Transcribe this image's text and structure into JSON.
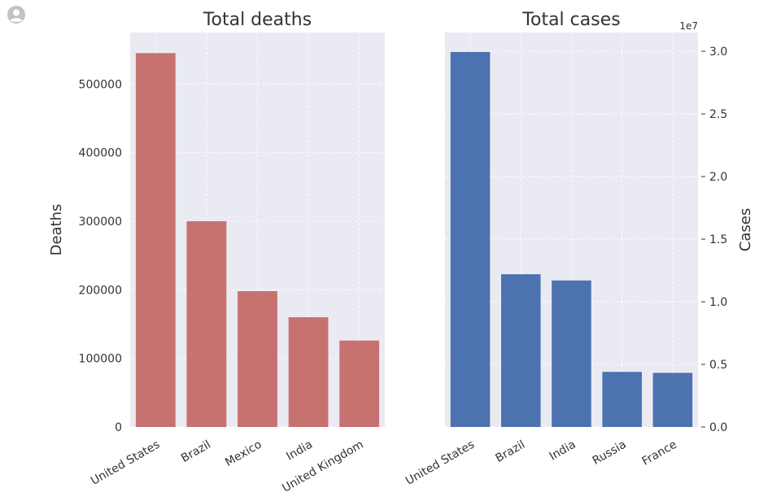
{
  "chart_data": [
    {
      "type": "bar",
      "title": "Total deaths",
      "ylabel": "Deaths",
      "categories": [
        "United States",
        "Brazil",
        "Mexico",
        "India",
        "United Kingdom"
      ],
      "values": [
        545000,
        300000,
        198000,
        160000,
        126000
      ],
      "ylim": [
        0,
        575000
      ],
      "yticks": [
        0,
        100000,
        200000,
        300000,
        400000,
        500000
      ],
      "ytick_labels": [
        "0",
        "100000",
        "200000",
        "300000",
        "400000",
        "500000"
      ],
      "y_axis_side": "left",
      "grid": true,
      "color": "#c87171"
    },
    {
      "type": "bar",
      "title": "Total cases",
      "ylabel": "Cases",
      "offset_label": "1e7",
      "categories": [
        "United States",
        "Brazil",
        "India",
        "Russia",
        "France"
      ],
      "values": [
        29950000,
        12200000,
        11700000,
        4400000,
        4320000
      ],
      "ylim": [
        0,
        31500000
      ],
      "yticks": [
        0,
        5000000,
        10000000,
        15000000,
        20000000,
        25000000,
        30000000
      ],
      "ytick_labels": [
        "0.0",
        "0.5",
        "1.0",
        "1.5",
        "2.0",
        "2.5",
        "3.0"
      ],
      "y_axis_side": "right",
      "grid": true,
      "color": "#4c72b0"
    }
  ],
  "colors": {
    "plot_background": "#eaeaf2",
    "grid": "#ffffff",
    "text": "#333333"
  },
  "icons": {
    "avatar": "user-avatar-icon"
  }
}
